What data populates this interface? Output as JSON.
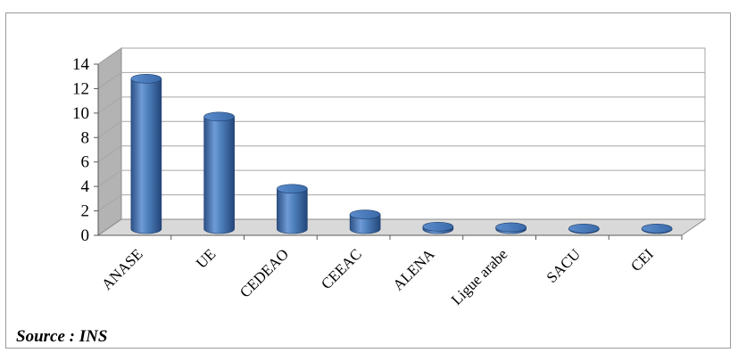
{
  "chart_data": {
    "type": "bar",
    "style": "3d-cylinder",
    "categories": [
      "ANASE",
      "UE",
      "CEDEAO",
      "CEEAC",
      "ALENA",
      "Ligue arabe",
      "SACU",
      "CEI"
    ],
    "values": [
      12.3,
      9.2,
      3.3,
      1.2,
      0.2,
      0.15,
      0.05,
      0.05
    ],
    "ylim": [
      0,
      14
    ],
    "yticks": [
      0,
      2,
      4,
      6,
      8,
      10,
      12,
      14
    ],
    "grid": true,
    "legend": "none",
    "colors": {
      "bar": "#4f81bd",
      "bar_dark": "#2c5185",
      "bar_light": "#8db3e2",
      "grid": "#a6a6a6"
    }
  },
  "source_label": "Source : INS"
}
